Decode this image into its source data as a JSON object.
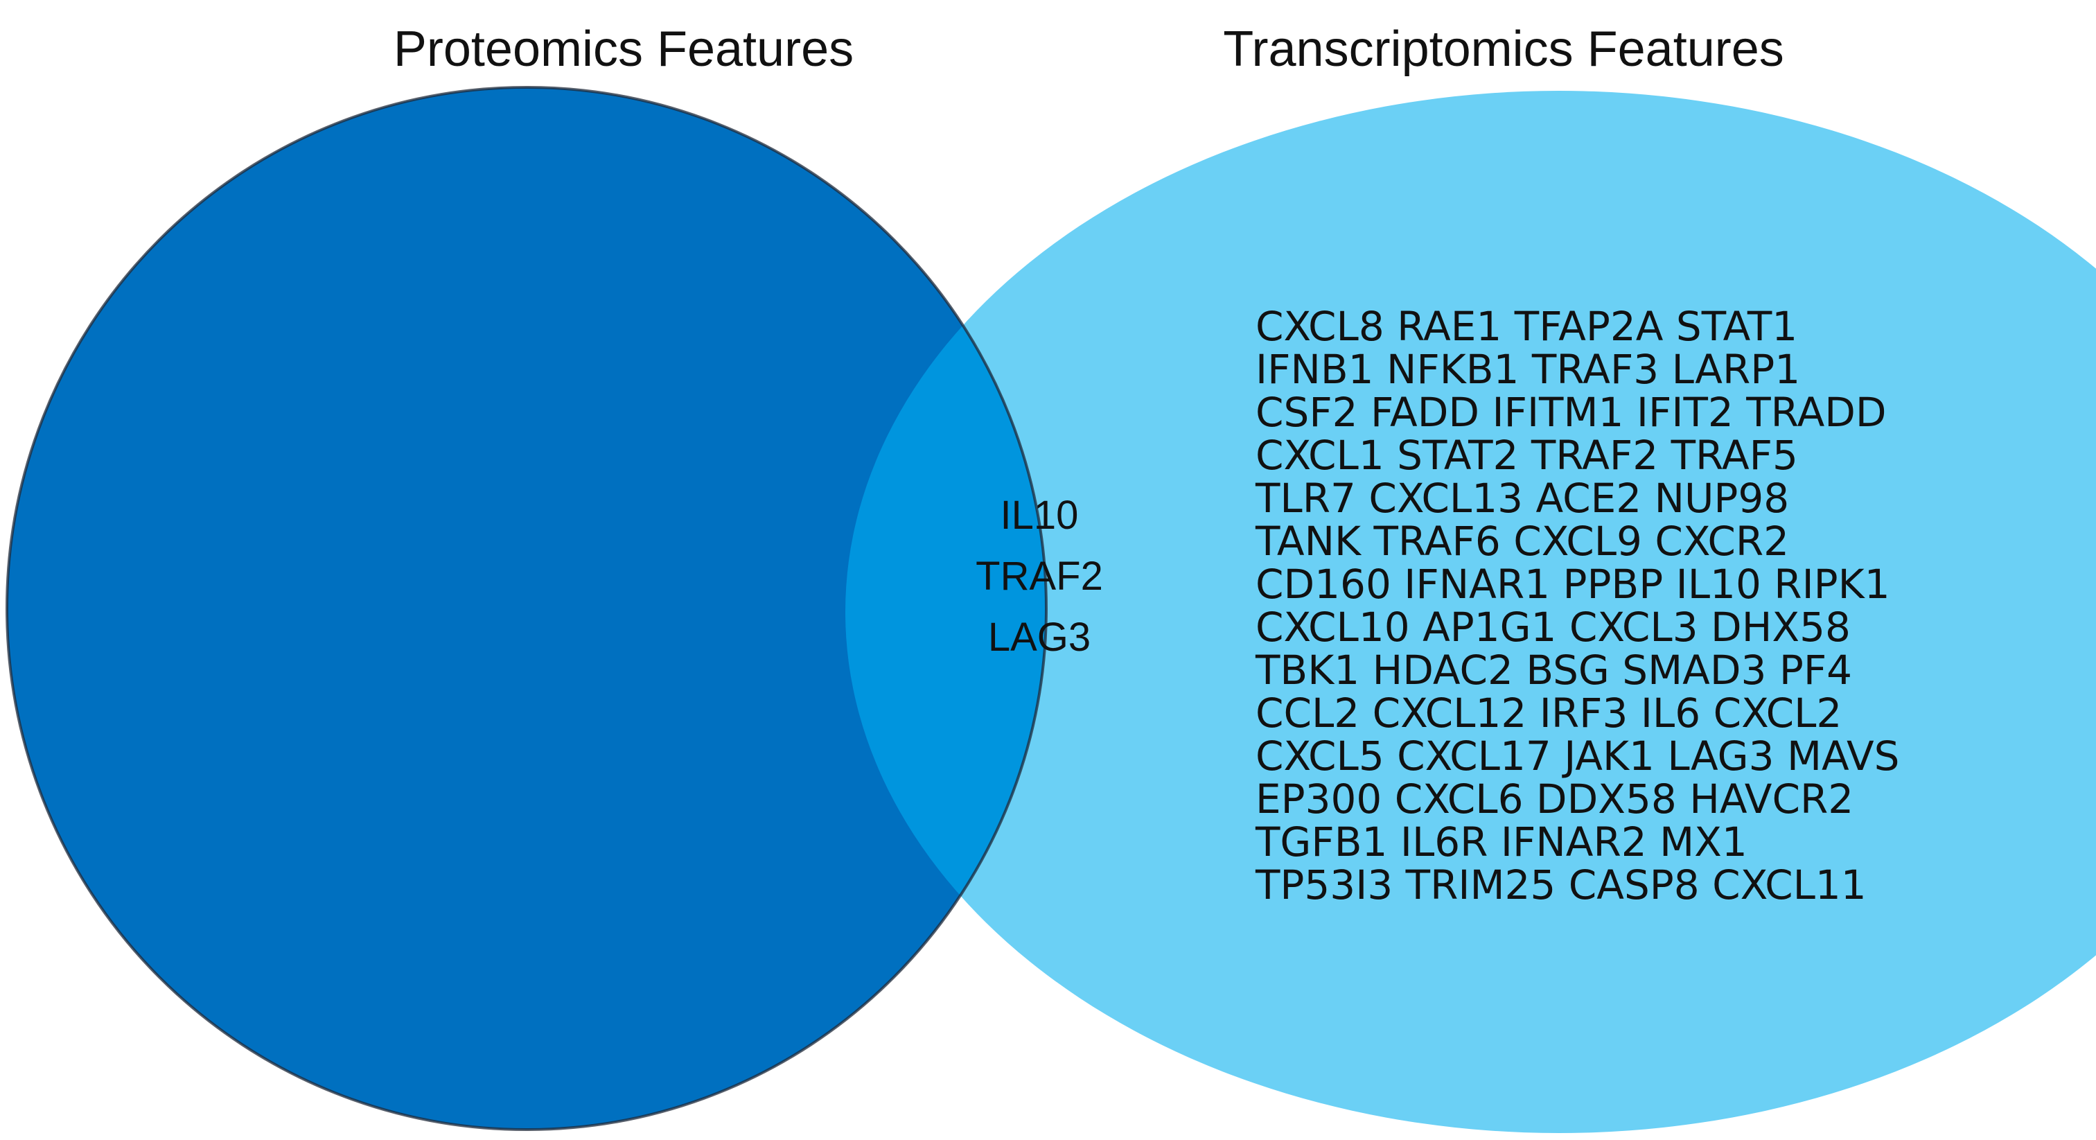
{
  "sets": {
    "left": {
      "label": "Proteomics Features",
      "color": "#0070c0"
    },
    "right": {
      "label": "Transcriptomics Features",
      "color": "#6bd0f5"
    },
    "overlap_color": "#0095de"
  },
  "overlap": {
    "genes": [
      "IL10",
      "TRAF2",
      "LAG3"
    ]
  },
  "right_only": {
    "lines": [
      "CXCL8 RAE1 TFAP2A STAT1",
      "IFNB1 NFKB1 TRAF3 LARP1",
      "CSF2 FADD IFITM1 IFIT2 TRADD",
      "CXCL1 STAT2 TRAF2 TRAF5",
      "TLR7 CXCL13 ACE2 NUP98",
      "TANK TRAF6 CXCL9 CXCR2",
      "CD160 IFNAR1 PPBP IL10 RIPK1",
      "CXCL10 AP1G1 CXCL3 DHX58",
      "TBK1 HDAC2 BSG SMAD3 PF4",
      "CCL2 CXCL12 IRF3 IL6 CXCL2",
      "CXCL5 CXCL17 JAK1 LAG3 MAVS",
      "EP300 CXCL6 DDX58 HAVCR2",
      "TGFB1 IL6R IFNAR2 MX1",
      "TP53I3 TRIM25 CASP8 CXCL11"
    ]
  }
}
